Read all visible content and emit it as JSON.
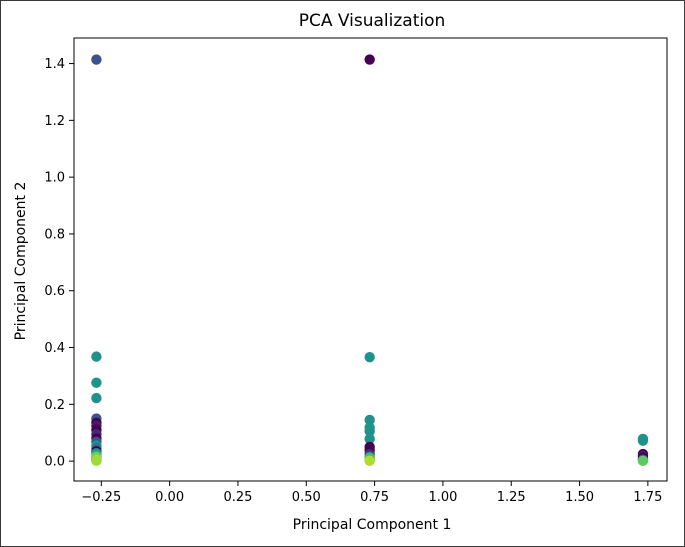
{
  "chart_data": {
    "type": "scatter",
    "title": "PCA Visualization",
    "xlabel": "Principal Component 1",
    "ylabel": "Principal Component 2",
    "xlim": [
      -0.35,
      1.82
    ],
    "ylim": [
      -0.07,
      1.49
    ],
    "xticks": [
      -0.25,
      0.0,
      0.25,
      0.5,
      0.75,
      1.0,
      1.25,
      1.5,
      1.75
    ],
    "xtick_labels": [
      "−0.25",
      "0.00",
      "0.25",
      "0.50",
      "0.75",
      "1.00",
      "1.25",
      "1.50",
      "1.75"
    ],
    "yticks": [
      0.0,
      0.2,
      0.4,
      0.6,
      0.8,
      1.0,
      1.2,
      1.4
    ],
    "ytick_labels": [
      "0.0",
      "0.2",
      "0.4",
      "0.6",
      "0.8",
      "1.0",
      "1.2",
      "1.4"
    ],
    "grid": false,
    "colormap": "viridis",
    "points": [
      {
        "x": -0.268,
        "y": 1.414,
        "color": "#3b528b"
      },
      {
        "x": -0.268,
        "y": 0.368,
        "color": "#21918c"
      },
      {
        "x": -0.268,
        "y": 0.276,
        "color": "#21918c"
      },
      {
        "x": -0.268,
        "y": 0.222,
        "color": "#21918c"
      },
      {
        "x": -0.268,
        "y": 0.15,
        "color": "#3b528b"
      },
      {
        "x": -0.268,
        "y": 0.135,
        "color": "#440154"
      },
      {
        "x": -0.268,
        "y": 0.125,
        "color": "#481a6c"
      },
      {
        "x": -0.268,
        "y": 0.11,
        "color": "#440154"
      },
      {
        "x": -0.268,
        "y": 0.095,
        "color": "#482878"
      },
      {
        "x": -0.268,
        "y": 0.08,
        "color": "#440154"
      },
      {
        "x": -0.268,
        "y": 0.068,
        "color": "#3b528b"
      },
      {
        "x": -0.268,
        "y": 0.055,
        "color": "#21918c"
      },
      {
        "x": -0.268,
        "y": 0.045,
        "color": "#2c728e"
      },
      {
        "x": -0.268,
        "y": 0.035,
        "color": "#440154"
      },
      {
        "x": -0.268,
        "y": 0.028,
        "color": "#21918c"
      },
      {
        "x": -0.268,
        "y": 0.02,
        "color": "#27ad81"
      },
      {
        "x": -0.268,
        "y": 0.015,
        "color": "#5ec962"
      },
      {
        "x": -0.268,
        "y": 0.01,
        "color": "#440154"
      },
      {
        "x": -0.268,
        "y": 0.006,
        "color": "#21918c"
      },
      {
        "x": -0.268,
        "y": 0.003,
        "color": "#2c728e"
      },
      {
        "x": -0.268,
        "y": 0.012,
        "color": "#7ad151"
      },
      {
        "x": -0.268,
        "y": 0.004,
        "color": "#addc30"
      },
      {
        "x": -0.268,
        "y": 0.001,
        "color": "#a0da39"
      },
      {
        "x": 0.732,
        "y": 1.414,
        "color": "#440154"
      },
      {
        "x": 0.732,
        "y": 0.366,
        "color": "#21918c"
      },
      {
        "x": 0.732,
        "y": 0.145,
        "color": "#21918c"
      },
      {
        "x": 0.732,
        "y": 0.118,
        "color": "#21918c"
      },
      {
        "x": 0.732,
        "y": 0.105,
        "color": "#21918c"
      },
      {
        "x": 0.732,
        "y": 0.078,
        "color": "#21918c"
      },
      {
        "x": 0.732,
        "y": 0.05,
        "color": "#440154"
      },
      {
        "x": 0.732,
        "y": 0.038,
        "color": "#440154"
      },
      {
        "x": 0.732,
        "y": 0.025,
        "color": "#482878"
      },
      {
        "x": 0.732,
        "y": 0.015,
        "color": "#21918c"
      },
      {
        "x": 0.732,
        "y": 0.01,
        "color": "#5ec962"
      },
      {
        "x": 0.732,
        "y": 0.005,
        "color": "#21918c"
      },
      {
        "x": 0.732,
        "y": 0.003,
        "color": "#7ad151"
      },
      {
        "x": 0.732,
        "y": 0.001,
        "color": "#addc30"
      },
      {
        "x": 1.732,
        "y": 0.078,
        "color": "#21918c"
      },
      {
        "x": 1.732,
        "y": 0.072,
        "color": "#21918c"
      },
      {
        "x": 1.732,
        "y": 0.025,
        "color": "#440154"
      },
      {
        "x": 1.732,
        "y": 0.018,
        "color": "#481a6c"
      },
      {
        "x": 1.732,
        "y": 0.012,
        "color": "#440154"
      },
      {
        "x": 1.732,
        "y": 0.006,
        "color": "#482878"
      },
      {
        "x": 1.732,
        "y": 0.003,
        "color": "#21918c"
      },
      {
        "x": 1.732,
        "y": 0.001,
        "color": "#5ec962"
      }
    ]
  }
}
